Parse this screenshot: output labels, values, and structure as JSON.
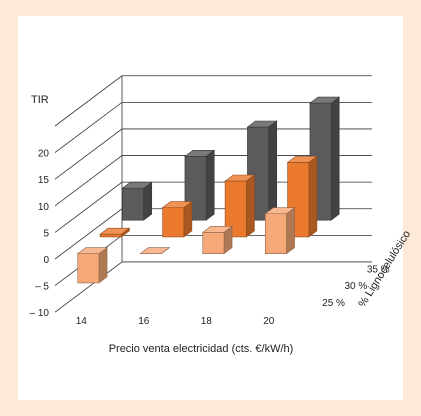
{
  "chart_data": {
    "type": "bar",
    "ylabel": "TIR",
    "xlabel": "Precio venta electricidad (cts. €/kW/h)",
    "zlabel": "% Lignocelulósico",
    "x_categories": [
      "14",
      "16",
      "18",
      "20"
    ],
    "ylim": [
      -10,
      20
    ],
    "y_ticks": [
      "– 10",
      "– 5",
      "0",
      "5",
      "10",
      "15",
      "20"
    ],
    "y_tick_values": [
      -10,
      -5,
      0,
      5,
      10,
      15,
      20
    ],
    "grid": true,
    "series": [
      {
        "name": "25 %",
        "values": [
          -5.5,
          0,
          4,
          7.5
        ]
      },
      {
        "name": "30 %",
        "values": [
          0.5,
          5.5,
          10.5,
          14
        ]
      },
      {
        "name": "35 %",
        "values": [
          6,
          12,
          17.5,
          22
        ]
      }
    ]
  },
  "colors": {
    "series": [
      "#f5a878",
      "#ec7a2e",
      "#5b5b5e"
    ],
    "background": "#fce9d7",
    "panel": "#ffffff",
    "grid": "#333333"
  }
}
